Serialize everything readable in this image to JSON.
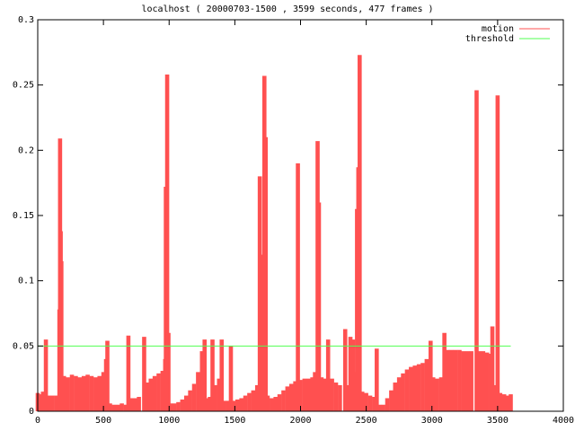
{
  "chart_data": {
    "type": "impulse",
    "title": "localhost ( 20000703-1500 , 3599 seconds, 477 frames )",
    "xlim": [
      0,
      4000
    ],
    "xticks": [
      0,
      500,
      1000,
      1500,
      2000,
      2500,
      3000,
      3500,
      4000
    ],
    "ylim": [
      0,
      0.3
    ],
    "yticks": [
      0,
      0.05,
      0.1,
      0.15,
      0.2,
      0.25,
      0.3
    ],
    "series": [
      {
        "name": "motion",
        "color": "#ff5050",
        "style": "impulses",
        "x": [
          0,
          20,
          40,
          62,
          80,
          110,
          140,
          165,
          170,
          175,
          180,
          200,
          230,
          260,
          290,
          320,
          350,
          380,
          410,
          440,
          470,
          500,
          520,
          530,
          550,
          580,
          610,
          640,
          670,
          690,
          710,
          740,
          770,
          810,
          830,
          860,
          890,
          920,
          950,
          970,
          975,
          985,
          995,
          1010,
          1040,
          1070,
          1100,
          1130,
          1160,
          1190,
          1220,
          1250,
          1270,
          1290,
          1310,
          1330,
          1350,
          1380,
          1400,
          1420,
          1450,
          1470,
          1490,
          1520,
          1550,
          1580,
          1610,
          1640,
          1670,
          1690,
          1700,
          1715,
          1725,
          1735,
          1750,
          1780,
          1810,
          1840,
          1870,
          1900,
          1930,
          1960,
          1980,
          2000,
          2030,
          2060,
          2090,
          2110,
          2130,
          2140,
          2160,
          2190,
          2210,
          2240,
          2270,
          2300,
          2340,
          2360,
          2380,
          2400,
          2420,
          2430,
          2440,
          2450,
          2470,
          2500,
          2530,
          2560,
          2580,
          2600,
          2630,
          2660,
          2690,
          2720,
          2750,
          2780,
          2810,
          2840,
          2870,
          2900,
          2930,
          2960,
          2990,
          3010,
          3040,
          3070,
          3095,
          3120,
          3150,
          3180,
          3210,
          3240,
          3270,
          3300,
          3340,
          3360,
          3390,
          3420,
          3450,
          3460,
          3480,
          3500,
          3520,
          3550,
          3580,
          3600
        ],
        "values": [
          0.014,
          0.013,
          0.015,
          0.055,
          0.012,
          0.012,
          0.012,
          0.078,
          0.209,
          0.138,
          0.115,
          0.027,
          0.026,
          0.028,
          0.027,
          0.026,
          0.027,
          0.028,
          0.027,
          0.026,
          0.027,
          0.03,
          0.04,
          0.054,
          0.006,
          0.005,
          0.005,
          0.006,
          0.005,
          0.058,
          0.01,
          0.01,
          0.011,
          0.057,
          0.022,
          0.025,
          0.027,
          0.029,
          0.031,
          0.04,
          0.172,
          0.258,
          0.06,
          0.006,
          0.006,
          0.007,
          0.009,
          0.012,
          0.016,
          0.021,
          0.03,
          0.046,
          0.055,
          0.01,
          0.011,
          0.055,
          0.02,
          0.025,
          0.055,
          0.008,
          0.008,
          0.05,
          0.008,
          0.009,
          0.01,
          0.012,
          0.014,
          0.016,
          0.02,
          0.18,
          0.12,
          0.05,
          0.257,
          0.21,
          0.012,
          0.01,
          0.011,
          0.013,
          0.016,
          0.019,
          0.021,
          0.023,
          0.19,
          0.024,
          0.025,
          0.025,
          0.026,
          0.03,
          0.207,
          0.16,
          0.026,
          0.025,
          0.055,
          0.025,
          0.022,
          0.02,
          0.063,
          0.02,
          0.057,
          0.055,
          0.03,
          0.155,
          0.187,
          0.273,
          0.015,
          0.014,
          0.012,
          0.011,
          0.048,
          0.005,
          0.005,
          0.01,
          0.016,
          0.022,
          0.026,
          0.029,
          0.032,
          0.034,
          0.035,
          0.036,
          0.037,
          0.04,
          0.054,
          0.026,
          0.025,
          0.026,
          0.06,
          0.047,
          0.047,
          0.047,
          0.047,
          0.046,
          0.046,
          0.046,
          0.246,
          0.046,
          0.046,
          0.045,
          0.044,
          0.065,
          0.02,
          0.242,
          0.014,
          0.013,
          0.012,
          0.013
        ]
      },
      {
        "name": "threshold",
        "color": "#50ff50",
        "style": "lines",
        "x": [
          0,
          3600
        ],
        "values": [
          0.05,
          0.05
        ]
      }
    ]
  }
}
